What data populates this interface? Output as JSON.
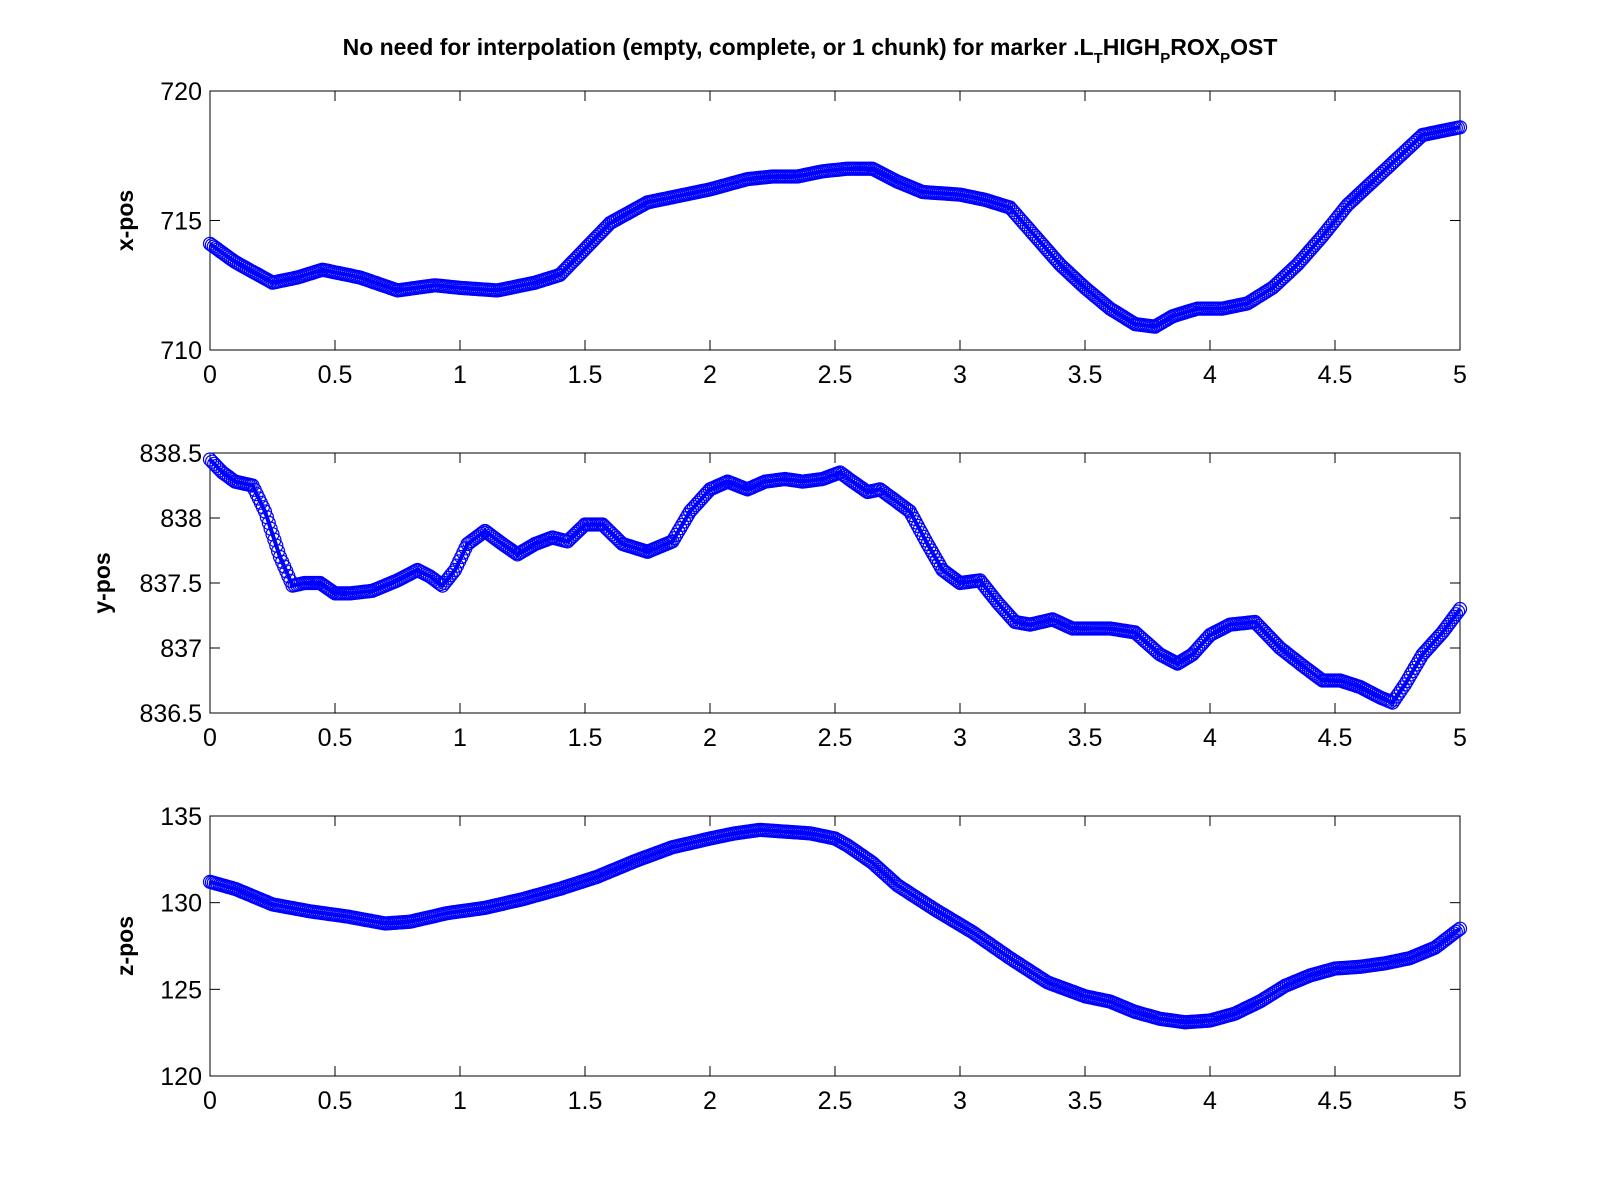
{
  "title": {
    "text": "No need for interpolation (empty, complete, or 1 chunk) for marker .L",
    "sub1": "T",
    "mid1": "HIGH",
    "sub2": "P",
    "mid2": "ROX",
    "sub3": "P",
    "end": "OST"
  },
  "colors": {
    "series": "#0000ff",
    "axes": "#000000",
    "background": "#ffffff"
  },
  "chart_data": [
    {
      "type": "scatter",
      "ylabel": "x-pos",
      "xlim": [
        0,
        5
      ],
      "ylim": [
        710,
        720
      ],
      "xticks": [
        "0",
        "0.5",
        "1",
        "1.5",
        "2",
        "2.5",
        "3",
        "3.5",
        "4",
        "4.5",
        "5"
      ],
      "yticks": [
        "710",
        "715",
        "720"
      ],
      "grid": false,
      "series": [
        {
          "marker": "circle-open",
          "x": [
            0,
            0.1,
            0.25,
            0.35,
            0.45,
            0.6,
            0.75,
            0.9,
            1.0,
            1.15,
            1.3,
            1.4,
            1.5,
            1.6,
            1.75,
            1.9,
            2.0,
            2.15,
            2.25,
            2.35,
            2.45,
            2.55,
            2.65,
            2.75,
            2.85,
            3.0,
            3.1,
            3.2,
            3.3,
            3.4,
            3.5,
            3.6,
            3.7,
            3.78,
            3.85,
            3.95,
            4.05,
            4.15,
            4.25,
            4.35,
            4.45,
            4.55,
            4.65,
            4.75,
            4.85,
            4.95,
            5.0
          ],
          "y": [
            714.1,
            713.4,
            712.6,
            712.8,
            713.1,
            712.8,
            712.3,
            712.5,
            712.4,
            712.3,
            712.6,
            712.9,
            713.9,
            714.9,
            715.7,
            716.0,
            716.2,
            716.6,
            716.7,
            716.7,
            716.9,
            717.0,
            717.0,
            716.5,
            716.1,
            716.0,
            715.8,
            715.5,
            714.4,
            713.3,
            712.4,
            711.6,
            711.0,
            710.9,
            711.3,
            711.6,
            711.6,
            711.8,
            712.4,
            713.3,
            714.4,
            715.6,
            716.5,
            717.4,
            718.3,
            718.5,
            718.6
          ]
        }
      ]
    },
    {
      "type": "scatter",
      "ylabel": "y-pos",
      "xlim": [
        0,
        5
      ],
      "ylim": [
        836.5,
        838.5
      ],
      "xticks": [
        "0",
        "0.5",
        "1",
        "1.5",
        "2",
        "2.5",
        "3",
        "3.5",
        "4",
        "4.5",
        "5"
      ],
      "yticks": [
        "836.5",
        "837",
        "837.5",
        "838",
        "838.5"
      ],
      "grid": false,
      "series": [
        {
          "marker": "circle-open",
          "x": [
            0,
            0.05,
            0.1,
            0.17,
            0.22,
            0.28,
            0.33,
            0.38,
            0.44,
            0.5,
            0.56,
            0.65,
            0.75,
            0.83,
            0.88,
            0.93,
            0.98,
            1.03,
            1.1,
            1.17,
            1.23,
            1.3,
            1.37,
            1.43,
            1.5,
            1.57,
            1.65,
            1.75,
            1.85,
            1.92,
            2.0,
            2.07,
            2.15,
            2.22,
            2.3,
            2.37,
            2.45,
            2.52,
            2.57,
            2.63,
            2.68,
            2.73,
            2.8,
            2.87,
            2.93,
            3.0,
            3.08,
            3.15,
            3.22,
            3.28,
            3.37,
            3.45,
            3.52,
            3.6,
            3.7,
            3.8,
            3.87,
            3.93,
            4.0,
            4.08,
            4.18,
            4.28,
            4.38,
            4.45,
            4.52,
            4.6,
            4.68,
            4.73,
            4.78,
            4.85,
            4.93,
            5.0
          ],
          "y": [
            838.45,
            838.35,
            838.28,
            838.25,
            838.05,
            837.7,
            837.48,
            837.5,
            837.5,
            837.42,
            837.42,
            837.44,
            837.52,
            837.6,
            837.55,
            837.48,
            837.6,
            837.8,
            837.9,
            837.8,
            837.72,
            837.8,
            837.85,
            837.82,
            837.95,
            837.95,
            837.8,
            837.74,
            837.82,
            838.05,
            838.22,
            838.28,
            838.22,
            838.28,
            838.3,
            838.28,
            838.3,
            838.35,
            838.28,
            838.2,
            838.22,
            838.15,
            838.05,
            837.8,
            837.6,
            837.5,
            837.52,
            837.35,
            837.2,
            837.18,
            837.22,
            837.15,
            837.15,
            837.15,
            837.12,
            836.95,
            836.88,
            836.95,
            837.1,
            837.18,
            837.2,
            837.0,
            836.85,
            836.75,
            836.75,
            836.7,
            836.62,
            836.58,
            836.72,
            836.95,
            837.12,
            837.3
          ]
        }
      ]
    },
    {
      "type": "scatter",
      "ylabel": "z-pos",
      "xlim": [
        0,
        5
      ],
      "ylim": [
        120,
        135
      ],
      "xticks": [
        "0",
        "0.5",
        "1",
        "1.5",
        "2",
        "2.5",
        "3",
        "3.5",
        "4",
        "4.5",
        "5"
      ],
      "yticks": [
        "120",
        "125",
        "130",
        "135"
      ],
      "grid": false,
      "series": [
        {
          "marker": "circle-open",
          "x": [
            0,
            0.1,
            0.25,
            0.4,
            0.55,
            0.7,
            0.8,
            0.95,
            1.1,
            1.25,
            1.4,
            1.55,
            1.7,
            1.85,
            2.0,
            2.1,
            2.2,
            2.3,
            2.4,
            2.5,
            2.55,
            2.65,
            2.75,
            2.9,
            3.05,
            3.2,
            3.35,
            3.5,
            3.6,
            3.7,
            3.8,
            3.9,
            4.0,
            4.1,
            4.2,
            4.3,
            4.4,
            4.5,
            4.6,
            4.7,
            4.8,
            4.9,
            5.0
          ],
          "y": [
            131.2,
            130.8,
            129.9,
            129.5,
            129.2,
            128.8,
            128.9,
            129.4,
            129.7,
            130.2,
            130.8,
            131.5,
            132.4,
            133.2,
            133.7,
            134.0,
            134.2,
            134.1,
            134.0,
            133.7,
            133.3,
            132.3,
            131.0,
            129.6,
            128.3,
            126.8,
            125.4,
            124.6,
            124.3,
            123.7,
            123.3,
            123.1,
            123.2,
            123.6,
            124.3,
            125.2,
            125.8,
            126.2,
            126.3,
            126.5,
            126.8,
            127.4,
            128.5
          ]
        }
      ]
    }
  ]
}
